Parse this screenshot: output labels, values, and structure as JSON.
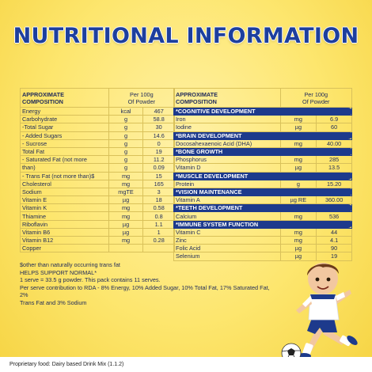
{
  "title": "NUTRITIONAL INFORMATION",
  "left_table": {
    "header": {
      "label_line1": "APPROXIMATE",
      "label_line2": "COMPOSITION",
      "per_line1": "Per 100g",
      "per_line2": "Of Powder"
    },
    "rows": [
      {
        "name": "Energy",
        "unit": "kcal",
        "value": "467"
      },
      {
        "name": "Carbohydrate",
        "unit": "g",
        "value": "58.8"
      },
      {
        "name": " -Total Sugar",
        "unit": "g",
        "value": "30"
      },
      {
        "name": " - Added Sugars",
        "unit": "g",
        "value": "14.6"
      },
      {
        "name": "  - Sucrose",
        "unit": "g",
        "value": "0"
      },
      {
        "name": "Total Fat",
        "unit": "g",
        "value": "19"
      },
      {
        "name": " - Saturated Fat (not more",
        "unit": "g",
        "value": "11.2"
      },
      {
        "name": "than)",
        "unit": "g",
        "value": "0.09"
      },
      {
        "name": " - Trans Fat (not more than)$",
        "unit": "mg",
        "value": "15"
      },
      {
        "name": "Cholesterol",
        "unit": "mg",
        "value": "165"
      },
      {
        "name": "Sodium",
        "unit": "mgTE",
        "value": "3"
      },
      {
        "name": "Vitamin E",
        "unit": "µg",
        "value": "18"
      },
      {
        "name": "Vitamin K",
        "unit": "mg",
        "value": "0.58"
      },
      {
        "name": "Thiamine",
        "unit": "mg",
        "value": "0.8"
      },
      {
        "name": "Riboflavin",
        "unit": "µg",
        "value": "1.1"
      },
      {
        "name": "Vitamin B6",
        "unit": "µg",
        "value": "1"
      },
      {
        "name": "Vitamin B12",
        "unit": "mg",
        "value": "0.28"
      },
      {
        "name": "Copper",
        "unit": "",
        "value": ""
      }
    ]
  },
  "right_table": {
    "header": {
      "label_line1": "APPROXIMATE",
      "label_line2": "COMPOSITION",
      "per_line1": "Per 100g",
      "per_line2": "Of Powder"
    },
    "sections": [
      {
        "title": "*COGNITIVE DEVELOPMENT",
        "rows": [
          {
            "name": "Iron",
            "unit": "mg",
            "value": "6.9"
          },
          {
            "name": "Iodine",
            "unit": "µg",
            "value": "60"
          }
        ]
      },
      {
        "title": "*BRAIN DEVELOPMENT",
        "rows": [
          {
            "name": "Docosahexaenoic Acid (DHA)",
            "unit": "mg",
            "value": "40.00"
          }
        ]
      },
      {
        "title": "*BONE GROWTH",
        "rows": [
          {
            "name": "Phosphorus",
            "unit": "mg",
            "value": "285"
          },
          {
            "name": "Vitamin D",
            "unit": "µg",
            "value": "13.5"
          }
        ]
      },
      {
        "title": "*MUSCLE DEVELOPMENT",
        "rows": [
          {
            "name": "Protein",
            "unit": "g",
            "value": "15.20"
          }
        ]
      },
      {
        "title": "*VISION MAINTENANCE",
        "rows": [
          {
            "name": "Vitamin A",
            "unit": "µg RE",
            "value": "360.00"
          }
        ]
      },
      {
        "title": "*TEETH DEVELOPMENT",
        "rows": [
          {
            "name": "Calcium",
            "unit": "mg",
            "value": "536"
          }
        ]
      },
      {
        "title": "*IMMUNE SYSTEM FUNCTION",
        "rows": [
          {
            "name": "Vitamin C",
            "unit": "mg",
            "value": "44"
          },
          {
            "name": "Zinc",
            "unit": "mg",
            "value": "4.1"
          },
          {
            "name": "Folic Acid",
            "unit": "µg",
            "value": "90"
          },
          {
            "name": "Selenium",
            "unit": "µg",
            "value": "19"
          }
        ]
      }
    ]
  },
  "notes": [
    "$other than naturally occurring trans fat",
    "HELPS SUPPORT NORMAL*",
    "1 serve = 33.5 g powder. This pack contains 11 serves.",
    "Per serve contribution to RDA - 8% Energy, 10% Added Sugar, 10% Total Fat, 17% Saturated Fat, 2%",
    "Trans Fat and 3% Sodium"
  ],
  "footer": "Proprietary food: Dairy based Drink Mix (1.1.2)",
  "colors": {
    "title": "#1d3f9e",
    "band": "#1d3a8c",
    "background": "#fde66e"
  }
}
